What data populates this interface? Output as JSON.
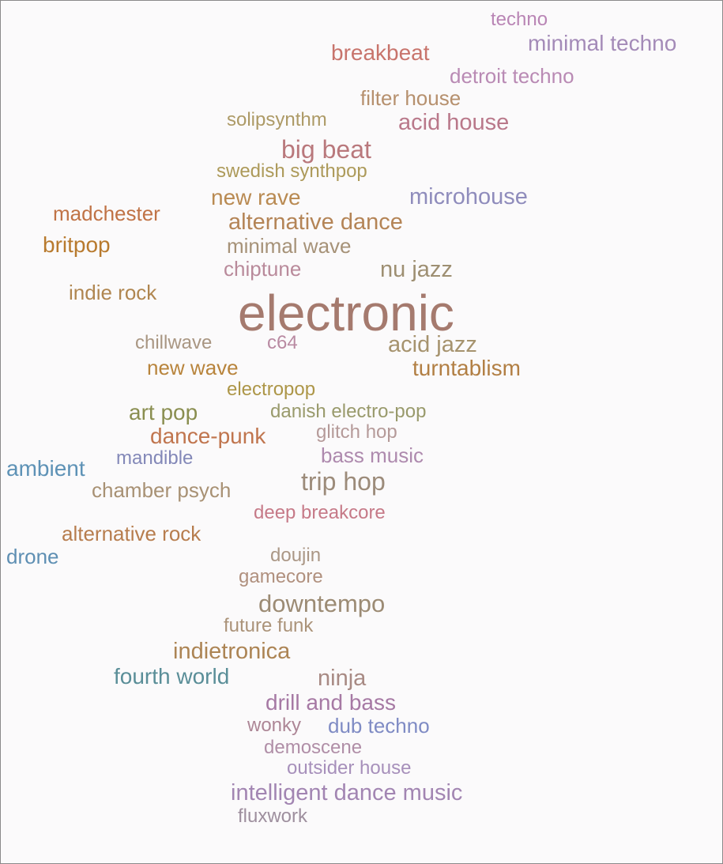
{
  "cloud": {
    "words": {
      "techno": {
        "text": "techno",
        "color": "#b985b5"
      },
      "minimal_techno": {
        "text": "minimal techno",
        "color": "#a48bb8"
      },
      "breakbeat": {
        "text": "breakbeat",
        "color": "#c8746c"
      },
      "detroit_techno": {
        "text": "detroit techno",
        "color": "#b98ab4"
      },
      "filter_house": {
        "text": "filter house",
        "color": "#b6906e"
      },
      "solipsynthm": {
        "text": "solipsynthm",
        "color": "#ad9a66"
      },
      "acid_house": {
        "text": "acid house",
        "color": "#b9788a"
      },
      "big_beat": {
        "text": "big beat",
        "color": "#b9787c"
      },
      "swedish_synthpop": {
        "text": "swedish synthpop",
        "color": "#ad9a5a"
      },
      "new_rave": {
        "text": "new rave",
        "color": "#b98a52"
      },
      "microhouse": {
        "text": "microhouse",
        "color": "#8f8cbc"
      },
      "madchester": {
        "text": "madchester",
        "color": "#c07346"
      },
      "alternative_dance": {
        "text": "alternative dance",
        "color": "#b48456"
      },
      "britpop": {
        "text": "britpop",
        "color": "#b87a2e"
      },
      "minimal_wave": {
        "text": "minimal wave",
        "color": "#a69278"
      },
      "chiptune": {
        "text": "chiptune",
        "color": "#b98a9b"
      },
      "nu_jazz": {
        "text": "nu jazz",
        "color": "#9e8f72"
      },
      "indie_rock": {
        "text": "indie rock",
        "color": "#b08650"
      },
      "electronic": {
        "text": "electronic",
        "color": "#a57a6e"
      },
      "chillwave": {
        "text": "chillwave",
        "color": "#a99682"
      },
      "c64": {
        "text": "c64",
        "color": "#b98aa2"
      },
      "acid_jazz": {
        "text": "acid jazz",
        "color": "#a6936e"
      },
      "new_wave": {
        "text": "new wave",
        "color": "#b8843c"
      },
      "turntablism": {
        "text": "turntablism",
        "color": "#b27f44"
      },
      "electropop": {
        "text": "electropop",
        "color": "#ad9648"
      },
      "art_pop": {
        "text": "art pop",
        "color": "#8a8e50"
      },
      "danish_electro_pop": {
        "text": "danish electro-pop",
        "color": "#999a6c"
      },
      "dance_punk": {
        "text": "dance-punk",
        "color": "#c0754e"
      },
      "glitch_hop": {
        "text": "glitch hop",
        "color": "#b59a99"
      },
      "bass_music": {
        "text": "bass music",
        "color": "#ae8aae"
      },
      "mandible": {
        "text": "mandible",
        "color": "#8388b8"
      },
      "ambient": {
        "text": "ambient",
        "color": "#5e92b6"
      },
      "trip_hop": {
        "text": "trip hop",
        "color": "#9c8b7a"
      },
      "chamber_psych": {
        "text": "chamber psych",
        "color": "#a89174"
      },
      "deep_breakcore": {
        "text": "deep breakcore",
        "color": "#c67a88"
      },
      "alternative_rock": {
        "text": "alternative rock",
        "color": "#b77d4e"
      },
      "drone": {
        "text": "drone",
        "color": "#5e8fb3"
      },
      "doujin": {
        "text": "doujin",
        "color": "#ab9786"
      },
      "gamecore": {
        "text": "gamecore",
        "color": "#b0907e"
      },
      "downtempo": {
        "text": "downtempo",
        "color": "#9c8b74"
      },
      "future_funk": {
        "text": "future funk",
        "color": "#ab9379"
      },
      "indietronica": {
        "text": "indietronica",
        "color": "#ac8454"
      },
      "fourth_world": {
        "text": "fourth world",
        "color": "#5a8e98"
      },
      "ninja": {
        "text": "ninja",
        "color": "#a88a84"
      },
      "drill_and_bass": {
        "text": "drill and bass",
        "color": "#a679a4"
      },
      "wonky": {
        "text": "wonky",
        "color": "#ad8696"
      },
      "dub_techno": {
        "text": "dub techno",
        "color": "#7f8bc4"
      },
      "demoscene": {
        "text": "demoscene",
        "color": "#b08ea7"
      },
      "outsider_house": {
        "text": "outsider house",
        "color": "#a790bb"
      },
      "intelligent_dance_music": {
        "text": "intelligent dance music",
        "color": "#a285b2"
      },
      "fluxwork": {
        "text": "fluxwork",
        "color": "#9e8f9e"
      }
    }
  }
}
